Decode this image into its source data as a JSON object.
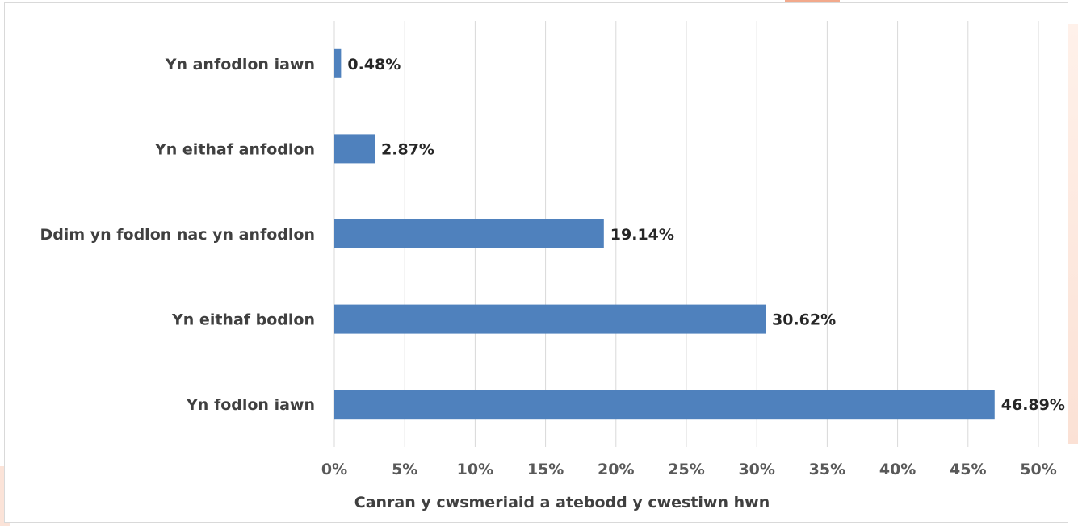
{
  "chart_data": {
    "type": "bar",
    "orientation": "horizontal",
    "categories": [
      "Yn anfodlon iawn",
      "Yn eithaf anfodlon",
      "Ddim yn fodlon nac yn anfodlon",
      "Yn eithaf bodlon",
      "Yn fodlon iawn"
    ],
    "series": [
      {
        "values": [
          0.48,
          2.87,
          19.14,
          30.62,
          46.89
        ]
      }
    ],
    "value_labels": [
      "0.48%",
      "2.87%",
      "19.14%",
      "30.62%",
      "46.89%"
    ],
    "xlabel": "Canran y cwsmeriaid a atebodd y cwestiwn hwn",
    "ylabel": "",
    "xlim": [
      0,
      50
    ],
    "xticks": [
      0,
      5,
      10,
      15,
      20,
      25,
      30,
      35,
      40,
      45,
      50
    ],
    "xtick_labels": [
      "0%",
      "5%",
      "10%",
      "15%",
      "20%",
      "25%",
      "30%",
      "35%",
      "40%",
      "45%",
      "50%"
    ],
    "grid": "vertical",
    "legend": "none",
    "colors": {
      "bar": "#4f81bd",
      "grid": "#d9d9d9"
    }
  }
}
